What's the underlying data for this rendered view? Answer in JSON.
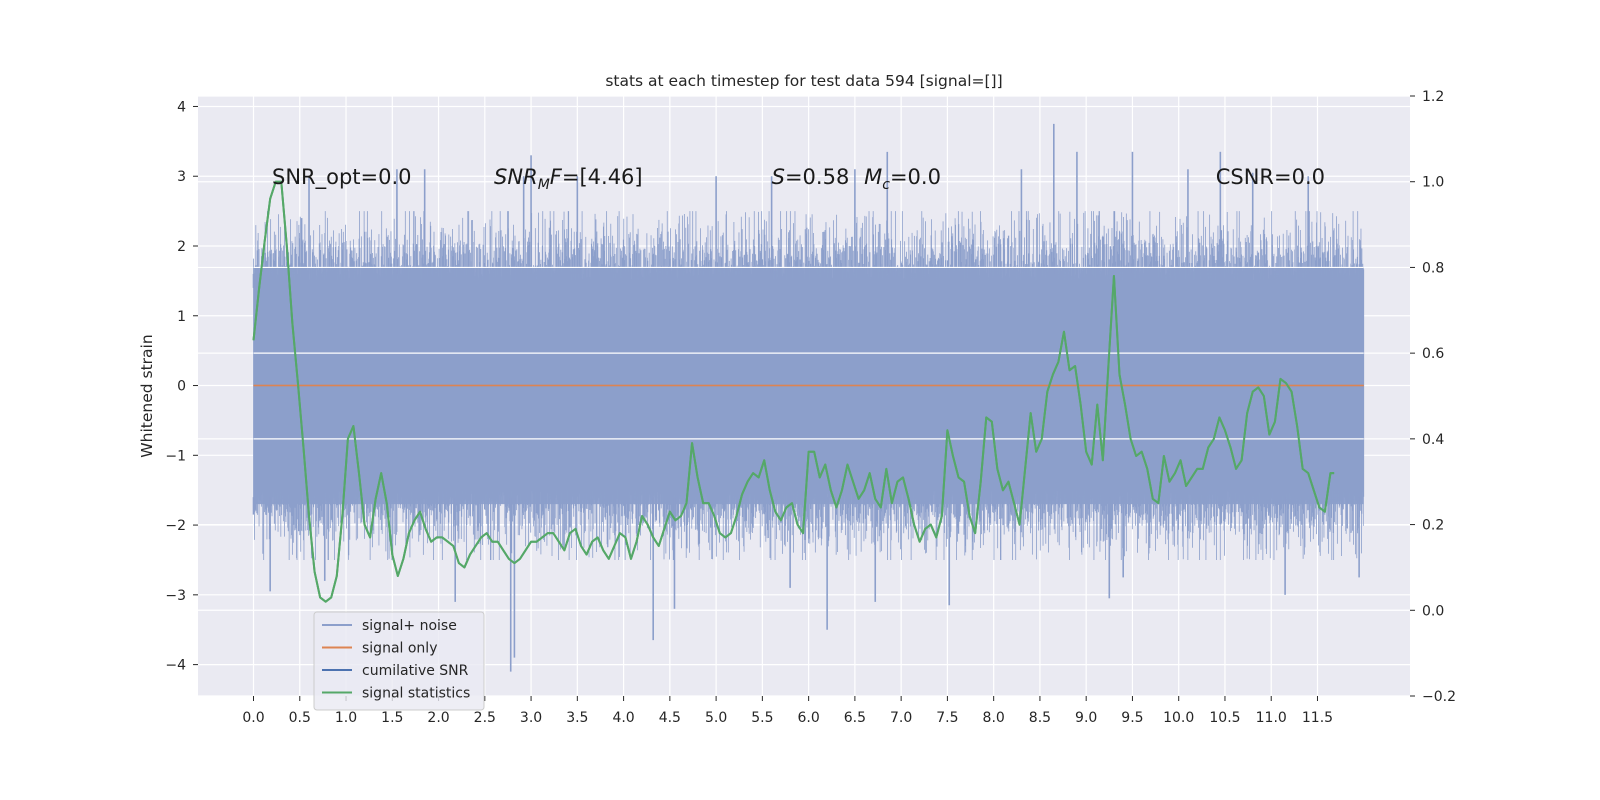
{
  "chart_data": {
    "type": "line",
    "title": "stats at each timestep for test data 594 [signal=[]]",
    "ylabel": "Whitened strain",
    "xlim": [
      -0.6,
      12.5
    ],
    "ylim": [
      -4.45,
      4.15
    ],
    "y2lim": [
      -0.2,
      1.2
    ],
    "grid": true,
    "xticks": [
      0.0,
      0.5,
      1.0,
      1.5,
      2.0,
      2.5,
      3.0,
      3.5,
      4.0,
      4.5,
      5.0,
      5.5,
      6.0,
      6.5,
      7.0,
      7.5,
      8.0,
      8.5,
      9.0,
      9.5,
      10.0,
      10.5,
      11.0,
      11.5
    ],
    "xtick_labels": [
      "0.0",
      "0.5",
      "1.0",
      "1.5",
      "2.0",
      "2.5",
      "3.0",
      "3.5",
      "4.0",
      "4.5",
      "5.0",
      "5.5",
      "6.0",
      "6.5",
      "7.0",
      "7.5",
      "8.0",
      "8.5",
      "9.0",
      "9.5",
      "10.0",
      "10.5",
      "11.0",
      "11.5"
    ],
    "yticks": [
      -4,
      -3,
      -2,
      -1,
      0,
      1,
      2,
      3,
      4
    ],
    "ytick_labels": [
      "−4",
      "−3",
      "−2",
      "−1",
      "0",
      "1",
      "2",
      "3",
      "4"
    ],
    "y2ticks": [
      -0.2,
      0.0,
      0.2,
      0.4,
      0.6,
      0.8,
      1.0,
      1.2
    ],
    "y2tick_labels": [
      "−0.2",
      "0.0",
      "0.2",
      "0.4",
      "0.6",
      "0.8",
      "1.0",
      "1.2"
    ],
    "annotations": [
      {
        "id": "snr-opt",
        "text": "SNR_opt=0.0",
        "x": 0.2,
        "y": 3.0
      },
      {
        "id": "snr-mf",
        "text": "=[4.46]",
        "italic_prefix": "SNR",
        "sub": "M",
        "italic_suffix": "F",
        "x": 2.6,
        "y": 3.0
      },
      {
        "id": "s-stat",
        "text": "=0.58",
        "italic_prefix": "S",
        "x": 5.6,
        "y": 3.0
      },
      {
        "id": "mc-stat",
        "text": "=0.0",
        "italic_prefix": "M",
        "sub": "c",
        "x": 6.6,
        "y": 3.0
      },
      {
        "id": "csnr",
        "text": "CSNR=0.0",
        "x": 10.4,
        "y": 3.0
      }
    ],
    "legend": {
      "placement": "lower-left",
      "entries": [
        {
          "label": "signal+ noise",
          "color": "#8c9fcb"
        },
        {
          "label": "signal only",
          "color": "#dd8452"
        },
        {
          "label": "cumilative SNR",
          "color": "#4c72b0"
        },
        {
          "label": "signal statistics",
          "color": "#55a868"
        }
      ]
    },
    "series": [
      {
        "name": "signal+ noise",
        "axis": "left",
        "style": "dense-noise",
        "color": "#8c9fcb",
        "x_range": [
          0.0,
          12.0
        ],
        "typical_envelope": [
          -1.7,
          1.7
        ],
        "spikes": [
          {
            "x": 0.0,
            "y": 1.4
          },
          {
            "x": 0.0,
            "y": -1.85
          },
          {
            "x": 0.18,
            "y": -2.95
          },
          {
            "x": 0.52,
            "y": 2.4
          },
          {
            "x": 0.6,
            "y": 3.0
          },
          {
            "x": 0.77,
            "y": -2.8
          },
          {
            "x": 1.55,
            "y": 3.1
          },
          {
            "x": 1.85,
            "y": 3.1
          },
          {
            "x": 2.18,
            "y": -3.1
          },
          {
            "x": 2.78,
            "y": -4.1
          },
          {
            "x": 2.82,
            "y": -3.9
          },
          {
            "x": 2.92,
            "y": 3.0
          },
          {
            "x": 3.0,
            "y": 3.3
          },
          {
            "x": 3.5,
            "y": 3.0
          },
          {
            "x": 4.32,
            "y": -3.65
          },
          {
            "x": 4.55,
            "y": -3.2
          },
          {
            "x": 5.0,
            "y": 3.0
          },
          {
            "x": 5.6,
            "y": 3.0
          },
          {
            "x": 5.8,
            "y": -2.9
          },
          {
            "x": 6.2,
            "y": -3.5
          },
          {
            "x": 6.5,
            "y": 3.1
          },
          {
            "x": 6.72,
            "y": -3.1
          },
          {
            "x": 6.85,
            "y": 3.35
          },
          {
            "x": 7.52,
            "y": -3.15
          },
          {
            "x": 8.3,
            "y": 3.1
          },
          {
            "x": 8.65,
            "y": 3.75
          },
          {
            "x": 8.9,
            "y": 3.35
          },
          {
            "x": 9.25,
            "y": -3.05
          },
          {
            "x": 9.4,
            "y": -2.75
          },
          {
            "x": 9.5,
            "y": 3.35
          },
          {
            "x": 10.1,
            "y": 3.1
          },
          {
            "x": 10.45,
            "y": 3.35
          },
          {
            "x": 10.8,
            "y": 3.05
          },
          {
            "x": 11.15,
            "y": -3.0
          },
          {
            "x": 11.4,
            "y": 3.0
          },
          {
            "x": 11.95,
            "y": -2.75
          }
        ]
      },
      {
        "name": "signal only",
        "axis": "left",
        "color": "#dd8452",
        "points": [
          [
            0.0,
            0.0
          ],
          [
            12.0,
            0.0
          ]
        ]
      },
      {
        "name": "cumilative SNR",
        "axis": "left",
        "color": "#4c72b0",
        "points": []
      },
      {
        "name": "signal statistics",
        "axis": "right",
        "color": "#55a868",
        "points": [
          [
            0.0,
            0.63
          ],
          [
            0.06,
            0.75
          ],
          [
            0.12,
            0.86
          ],
          [
            0.18,
            0.96
          ],
          [
            0.24,
            1.0
          ],
          [
            0.3,
            1.0
          ],
          [
            0.36,
            0.85
          ],
          [
            0.42,
            0.67
          ],
          [
            0.48,
            0.53
          ],
          [
            0.54,
            0.38
          ],
          [
            0.6,
            0.22
          ],
          [
            0.66,
            0.09
          ],
          [
            0.72,
            0.03
          ],
          [
            0.78,
            0.02
          ],
          [
            0.84,
            0.03
          ],
          [
            0.9,
            0.08
          ],
          [
            0.96,
            0.22
          ],
          [
            1.02,
            0.4
          ],
          [
            1.08,
            0.43
          ],
          [
            1.14,
            0.32
          ],
          [
            1.2,
            0.2
          ],
          [
            1.26,
            0.17
          ],
          [
            1.32,
            0.26
          ],
          [
            1.38,
            0.32
          ],
          [
            1.44,
            0.25
          ],
          [
            1.5,
            0.13
          ],
          [
            1.56,
            0.08
          ],
          [
            1.62,
            0.12
          ],
          [
            1.68,
            0.18
          ],
          [
            1.74,
            0.21
          ],
          [
            1.8,
            0.23
          ],
          [
            1.86,
            0.19
          ],
          [
            1.92,
            0.16
          ],
          [
            1.98,
            0.17
          ],
          [
            2.04,
            0.17
          ],
          [
            2.1,
            0.16
          ],
          [
            2.16,
            0.15
          ],
          [
            2.22,
            0.11
          ],
          [
            2.28,
            0.1
          ],
          [
            2.34,
            0.13
          ],
          [
            2.4,
            0.15
          ],
          [
            2.46,
            0.17
          ],
          [
            2.52,
            0.18
          ],
          [
            2.58,
            0.16
          ],
          [
            2.64,
            0.16
          ],
          [
            2.7,
            0.14
          ],
          [
            2.76,
            0.12
          ],
          [
            2.82,
            0.11
          ],
          [
            2.88,
            0.12
          ],
          [
            2.94,
            0.14
          ],
          [
            3.0,
            0.16
          ],
          [
            3.06,
            0.16
          ],
          [
            3.12,
            0.17
          ],
          [
            3.18,
            0.18
          ],
          [
            3.24,
            0.18
          ],
          [
            3.3,
            0.16
          ],
          [
            3.36,
            0.14
          ],
          [
            3.42,
            0.18
          ],
          [
            3.48,
            0.19
          ],
          [
            3.54,
            0.15
          ],
          [
            3.6,
            0.13
          ],
          [
            3.66,
            0.16
          ],
          [
            3.72,
            0.17
          ],
          [
            3.78,
            0.14
          ],
          [
            3.84,
            0.12
          ],
          [
            3.9,
            0.15
          ],
          [
            3.96,
            0.18
          ],
          [
            4.02,
            0.17
          ],
          [
            4.08,
            0.12
          ],
          [
            4.14,
            0.16
          ],
          [
            4.2,
            0.22
          ],
          [
            4.26,
            0.2
          ],
          [
            4.32,
            0.17
          ],
          [
            4.38,
            0.15
          ],
          [
            4.44,
            0.19
          ],
          [
            4.5,
            0.23
          ],
          [
            4.56,
            0.21
          ],
          [
            4.62,
            0.22
          ],
          [
            4.68,
            0.25
          ],
          [
            4.74,
            0.39
          ],
          [
            4.8,
            0.31
          ],
          [
            4.86,
            0.25
          ],
          [
            4.92,
            0.25
          ],
          [
            4.98,
            0.22
          ],
          [
            5.04,
            0.18
          ],
          [
            5.1,
            0.17
          ],
          [
            5.16,
            0.18
          ],
          [
            5.22,
            0.22
          ],
          [
            5.28,
            0.27
          ],
          [
            5.34,
            0.3
          ],
          [
            5.4,
            0.32
          ],
          [
            5.46,
            0.31
          ],
          [
            5.52,
            0.35
          ],
          [
            5.58,
            0.28
          ],
          [
            5.64,
            0.23
          ],
          [
            5.7,
            0.21
          ],
          [
            5.76,
            0.24
          ],
          [
            5.82,
            0.25
          ],
          [
            5.88,
            0.2
          ],
          [
            5.94,
            0.18
          ],
          [
            6.0,
            0.37
          ],
          [
            6.06,
            0.37
          ],
          [
            6.12,
            0.31
          ],
          [
            6.18,
            0.34
          ],
          [
            6.24,
            0.28
          ],
          [
            6.3,
            0.24
          ],
          [
            6.36,
            0.28
          ],
          [
            6.42,
            0.34
          ],
          [
            6.48,
            0.3
          ],
          [
            6.54,
            0.26
          ],
          [
            6.6,
            0.28
          ],
          [
            6.66,
            0.32
          ],
          [
            6.72,
            0.26
          ],
          [
            6.78,
            0.24
          ],
          [
            6.84,
            0.33
          ],
          [
            6.9,
            0.25
          ],
          [
            6.96,
            0.3
          ],
          [
            7.02,
            0.31
          ],
          [
            7.08,
            0.26
          ],
          [
            7.14,
            0.2
          ],
          [
            7.2,
            0.16
          ],
          [
            7.26,
            0.19
          ],
          [
            7.32,
            0.2
          ],
          [
            7.38,
            0.17
          ],
          [
            7.44,
            0.22
          ],
          [
            7.5,
            0.42
          ],
          [
            7.56,
            0.36
          ],
          [
            7.62,
            0.31
          ],
          [
            7.68,
            0.3
          ],
          [
            7.74,
            0.22
          ],
          [
            7.8,
            0.18
          ],
          [
            7.86,
            0.3
          ],
          [
            7.92,
            0.45
          ],
          [
            7.98,
            0.44
          ],
          [
            8.04,
            0.33
          ],
          [
            8.1,
            0.28
          ],
          [
            8.16,
            0.3
          ],
          [
            8.22,
            0.25
          ],
          [
            8.28,
            0.2
          ],
          [
            8.34,
            0.33
          ],
          [
            8.4,
            0.46
          ],
          [
            8.46,
            0.37
          ],
          [
            8.52,
            0.4
          ],
          [
            8.58,
            0.51
          ],
          [
            8.64,
            0.55
          ],
          [
            8.7,
            0.58
          ],
          [
            8.76,
            0.65
          ],
          [
            8.82,
            0.56
          ],
          [
            8.88,
            0.57
          ],
          [
            8.94,
            0.48
          ],
          [
            9.0,
            0.37
          ],
          [
            9.06,
            0.34
          ],
          [
            9.12,
            0.48
          ],
          [
            9.18,
            0.35
          ],
          [
            9.24,
            0.57
          ],
          [
            9.3,
            0.78
          ],
          [
            9.36,
            0.55
          ],
          [
            9.42,
            0.48
          ],
          [
            9.48,
            0.4
          ],
          [
            9.54,
            0.36
          ],
          [
            9.6,
            0.37
          ],
          [
            9.66,
            0.33
          ],
          [
            9.72,
            0.26
          ],
          [
            9.78,
            0.25
          ],
          [
            9.84,
            0.36
          ],
          [
            9.9,
            0.3
          ],
          [
            9.96,
            0.32
          ],
          [
            10.02,
            0.35
          ],
          [
            10.08,
            0.29
          ],
          [
            10.14,
            0.31
          ],
          [
            10.2,
            0.33
          ],
          [
            10.26,
            0.33
          ],
          [
            10.32,
            0.38
          ],
          [
            10.38,
            0.4
          ],
          [
            10.44,
            0.45
          ],
          [
            10.5,
            0.42
          ],
          [
            10.56,
            0.38
          ],
          [
            10.62,
            0.33
          ],
          [
            10.68,
            0.35
          ],
          [
            10.74,
            0.46
          ],
          [
            10.8,
            0.51
          ],
          [
            10.86,
            0.52
          ],
          [
            10.92,
            0.5
          ],
          [
            10.98,
            0.41
          ],
          [
            11.04,
            0.44
          ],
          [
            11.1,
            0.54
          ],
          [
            11.16,
            0.53
          ],
          [
            11.22,
            0.51
          ],
          [
            11.28,
            0.43
          ],
          [
            11.34,
            0.33
          ],
          [
            11.4,
            0.32
          ],
          [
            11.46,
            0.28
          ],
          [
            11.52,
            0.24
          ],
          [
            11.58,
            0.23
          ],
          [
            11.64,
            0.32
          ],
          [
            11.68,
            0.32
          ]
        ]
      }
    ]
  }
}
